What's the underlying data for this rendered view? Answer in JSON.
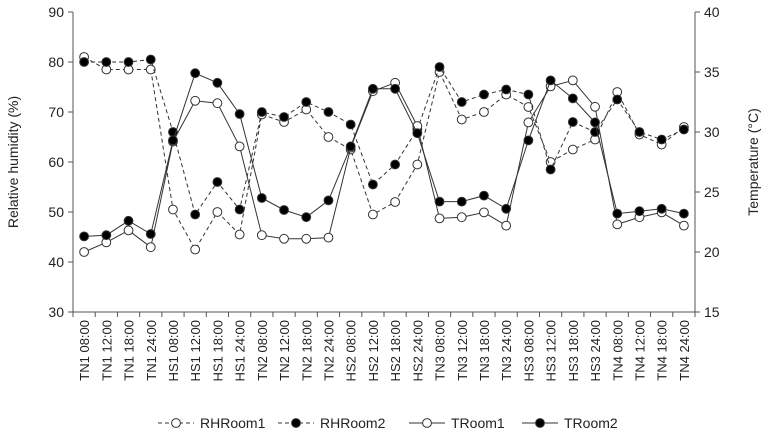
{
  "chart_data": {
    "type": "line",
    "categories": [
      "TN1 08:00",
      "TN1 12:00",
      "TN1 18:00",
      "TN1 24:00",
      "HS1 08:00",
      "HS1 12:00",
      "HS1 18:00",
      "HS1 24:00",
      "TN2 08:00",
      "TN2 12:00",
      "TN2 18:00",
      "TN2 24:00",
      "HS2 08:00",
      "HS2 12:00",
      "HS2 18:00",
      "HS2 24:00",
      "TN3 08:00",
      "TN3 12:00",
      "TN3 18:00",
      "TN3 24:00",
      "HS3 08:00",
      "HS3 12:00",
      "HS3 18:00",
      "HS3 24:00",
      "TN4 08:00",
      "TN4 12:00",
      "TN4 18:00",
      "TN4 24:00"
    ],
    "ylabel": "Relative humidity (%)",
    "y2label": "Temperature (°C)",
    "ylim": [
      30,
      90
    ],
    "y2lim": [
      15,
      40
    ],
    "yticks": [
      30,
      40,
      50,
      60,
      70,
      80,
      90
    ],
    "y2ticks": [
      15,
      20,
      25,
      30,
      35,
      40
    ],
    "legend_position": "bottom",
    "series": [
      {
        "name": "RHRoom1",
        "axis": "left",
        "style": "dashed",
        "marker": "open",
        "values": [
          81,
          78.5,
          78.5,
          78.5,
          50.5,
          42.5,
          50,
          45.5,
          69.5,
          68,
          70.5,
          65,
          62.5,
          49.5,
          52,
          59.5,
          78,
          68.5,
          70,
          73.5,
          71,
          60,
          62.5,
          64.5,
          74,
          65.5,
          63.5,
          67
        ]
      },
      {
        "name": "RHRoom2",
        "axis": "left",
        "style": "dashed",
        "marker": "filled",
        "values": [
          80,
          80,
          80,
          80.5,
          66,
          49.5,
          56,
          50.5,
          70,
          69,
          72,
          70,
          67.5,
          55.5,
          59.5,
          66.5,
          79,
          72,
          73.5,
          74.5,
          73.5,
          58.5,
          68,
          66,
          72.5,
          66,
          64.5,
          66.5
        ]
      },
      {
        "name": "TRoom1",
        "axis": "right",
        "style": "solid",
        "marker": "open",
        "values": [
          20,
          20.8,
          21.8,
          20.4,
          29.2,
          32.6,
          32.4,
          28.8,
          21.4,
          21.1,
          21.1,
          21.2,
          28.7,
          33.4,
          34.1,
          30.5,
          22.8,
          22.9,
          23.3,
          22.2,
          30.8,
          33.8,
          34.3,
          32.1,
          22.3,
          22.9,
          23.3,
          22.2
        ]
      },
      {
        "name": "TRoom2",
        "axis": "right",
        "style": "solid",
        "marker": "filled",
        "values": [
          21.3,
          21.4,
          22.6,
          21.5,
          29.3,
          34.9,
          34.1,
          31.5,
          24.5,
          23.5,
          22.9,
          24.3,
          28.8,
          33.6,
          33.6,
          29.9,
          24.2,
          24.2,
          24.7,
          23.6,
          29.3,
          34.3,
          32.8,
          30.8,
          23.2,
          23.4,
          23.6,
          23.2
        ]
      }
    ]
  }
}
